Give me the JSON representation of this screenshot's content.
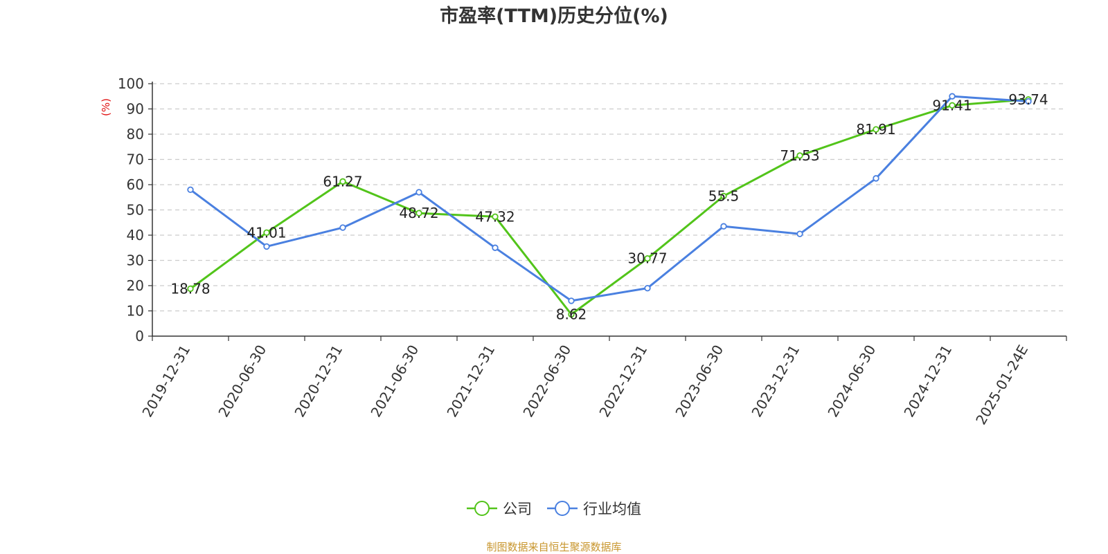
{
  "chart_data": {
    "type": "line",
    "title": "市盈率(TTM)历史分位(%)",
    "ylabel": "(%)",
    "xlabel": "",
    "ylim": [
      0,
      100
    ],
    "yticks": [
      0,
      10,
      20,
      30,
      40,
      50,
      60,
      70,
      80,
      90,
      100
    ],
    "grid": true,
    "legend_position": "bottom",
    "categories": [
      "2019-12-31",
      "2020-06-30",
      "2020-12-31",
      "2021-06-30",
      "2021-12-31",
      "2022-06-30",
      "2022-12-31",
      "2023-06-30",
      "2023-12-31",
      "2024-06-30",
      "2024-12-31",
      "2025-01-24E"
    ],
    "series": [
      {
        "name": "公司",
        "color": "#52c41a",
        "values": [
          18.78,
          41.01,
          61.27,
          48.72,
          47.32,
          8.62,
          30.77,
          55.5,
          71.53,
          81.91,
          91.41,
          93.74
        ],
        "labels": [
          "18.78",
          "41.01",
          "61.27",
          "48.72",
          "47.32",
          "8.62",
          "30.77",
          "55.5",
          "71.53",
          "81.91",
          "91.41",
          "93.74"
        ]
      },
      {
        "name": "行业均值",
        "color": "#4a80e0",
        "values": [
          58,
          35.5,
          43,
          57,
          35,
          14,
          19,
          43.5,
          40.5,
          62.5,
          95,
          93
        ]
      }
    ]
  },
  "source": "制图数据来自恒生聚源数据库"
}
